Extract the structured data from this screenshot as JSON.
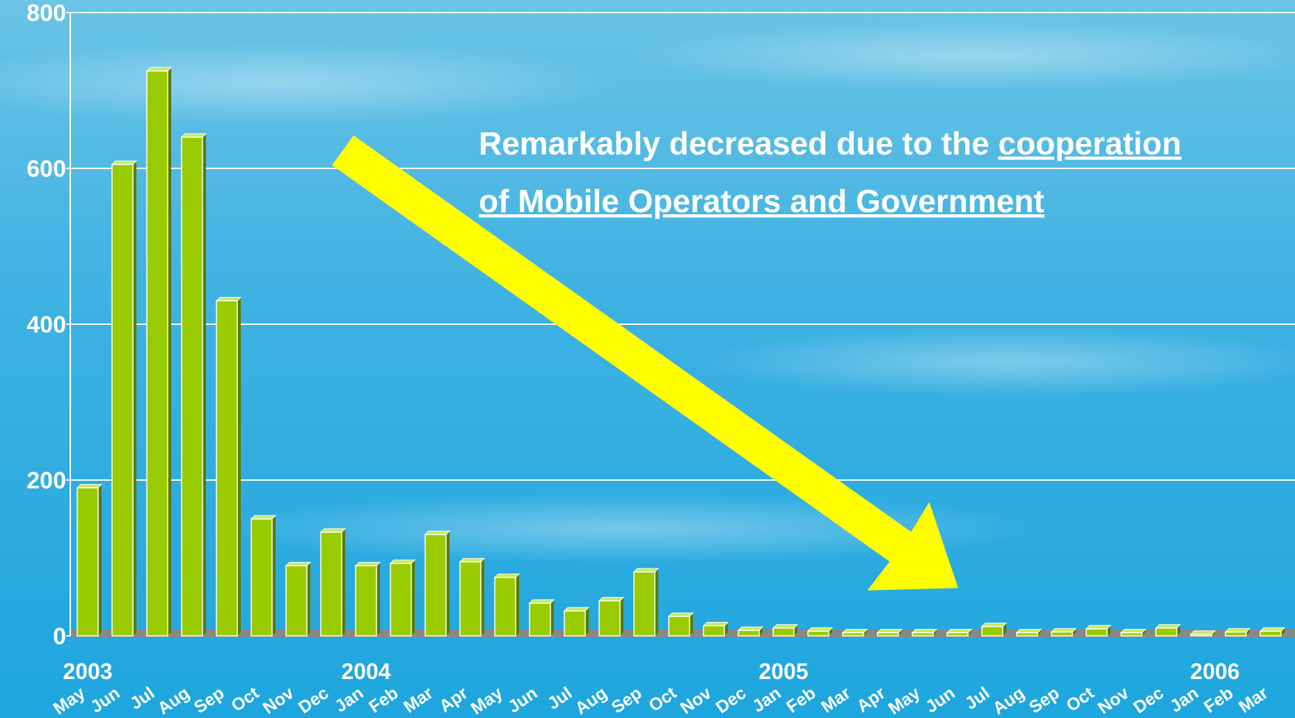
{
  "chart_data": {
    "type": "bar",
    "categories": [
      "May",
      "Jun",
      "Jul",
      "Aug",
      "Sep",
      "Oct",
      "Nov",
      "Dec",
      "Jan",
      "Feb",
      "Mar",
      "Apr",
      "May",
      "Jun",
      "Jul",
      "Aug",
      "Sep",
      "Oct",
      "Nov",
      "Dec",
      "Jan",
      "Feb",
      "Mar",
      "Apr",
      "May",
      "Jun",
      "Jul",
      "Aug",
      "Sep",
      "Oct",
      "Nov",
      "Dec",
      "Jan",
      "Feb",
      "Mar"
    ],
    "years": [
      "2003",
      "2004",
      "2005",
      "2006"
    ],
    "values": [
      190,
      605,
      725,
      640,
      430,
      150,
      90,
      133,
      90,
      93,
      130,
      95,
      75,
      42,
      32,
      45,
      82,
      25,
      13,
      7,
      10,
      6,
      4,
      4,
      4,
      4,
      12,
      4,
      5,
      9,
      4,
      10,
      2,
      5,
      6
    ],
    "color": "#99cc00",
    "ylim": [
      0,
      800
    ],
    "yticks": [
      0,
      200,
      400,
      600,
      800
    ],
    "grid": true,
    "annotation": {
      "line1": "Remarkably decreased due to the ",
      "line1_underlined": "cooperation",
      "line2": "of Mobile Operators and Government"
    }
  }
}
